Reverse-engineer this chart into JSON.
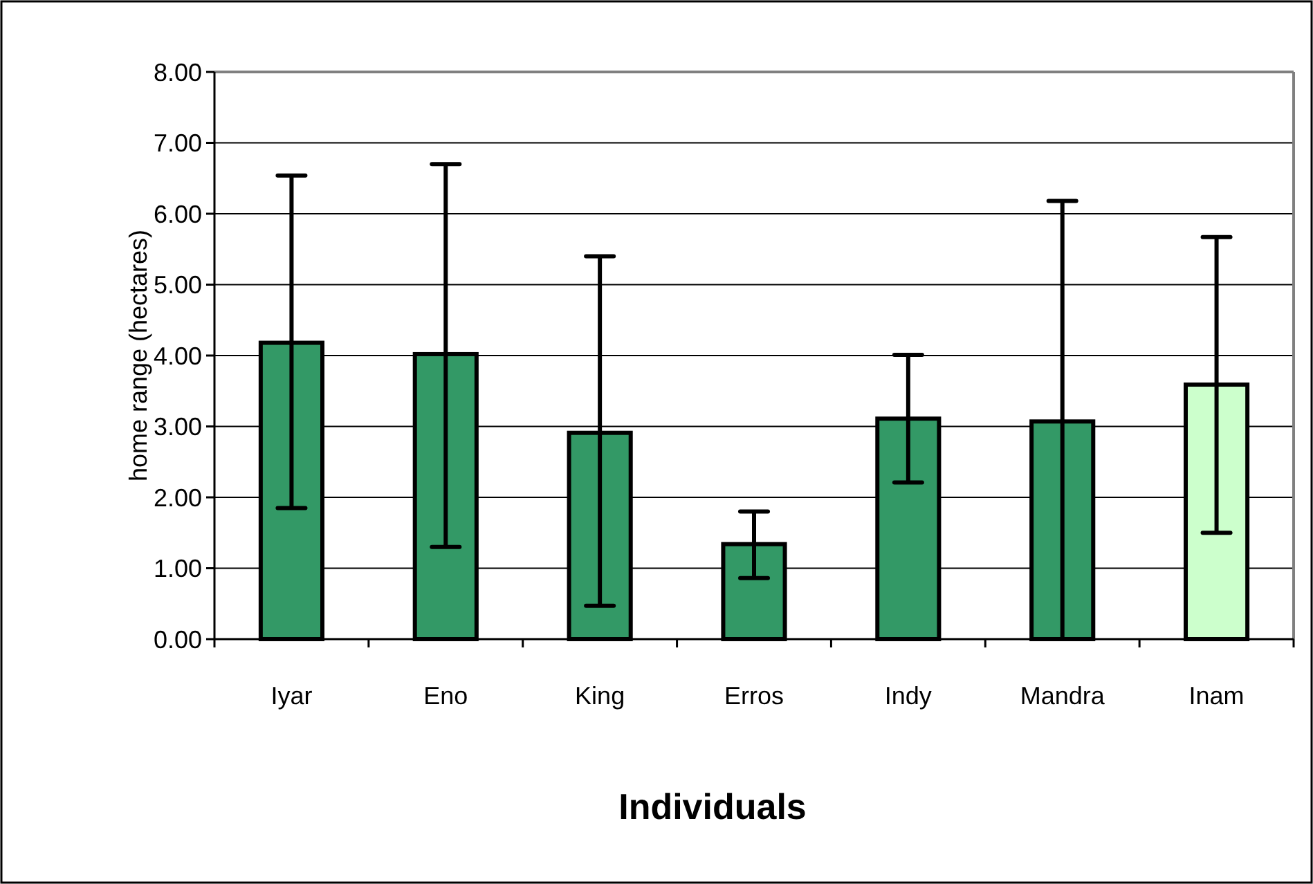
{
  "chart_data": {
    "type": "bar",
    "xlabel": "Individuals",
    "ylabel": "home range (hectares)",
    "categories": [
      "Iyar",
      "Eno",
      "King",
      "Erros",
      "Indy",
      "Mandra",
      "Inam"
    ],
    "values": [
      4.18,
      4.02,
      2.91,
      1.34,
      3.11,
      3.07,
      3.59
    ],
    "colors": [
      "#339966",
      "#339966",
      "#339966",
      "#339966",
      "#339966",
      "#339966",
      "#ccffcc"
    ],
    "errors": [
      [
        1.85,
        6.54
      ],
      [
        1.3,
        6.7
      ],
      [
        0.47,
        5.4
      ],
      [
        0.86,
        1.8
      ],
      [
        2.21,
        4.01
      ],
      [
        0,
        6.18
      ],
      [
        1.5,
        5.67
      ]
    ],
    "ylim": [
      0,
      8
    ],
    "yticks": [
      {
        "value": 0,
        "label": "0.00"
      },
      {
        "value": 1,
        "label": "1.00"
      },
      {
        "value": 2,
        "label": "2.00"
      },
      {
        "value": 3,
        "label": "3.00"
      },
      {
        "value": 4,
        "label": "4.00"
      },
      {
        "value": 5,
        "label": "5.00"
      },
      {
        "value": 6,
        "label": "6.00"
      },
      {
        "value": 7,
        "label": "7.00"
      },
      {
        "value": 8,
        "label": "8.00"
      }
    ],
    "grid": "y"
  }
}
